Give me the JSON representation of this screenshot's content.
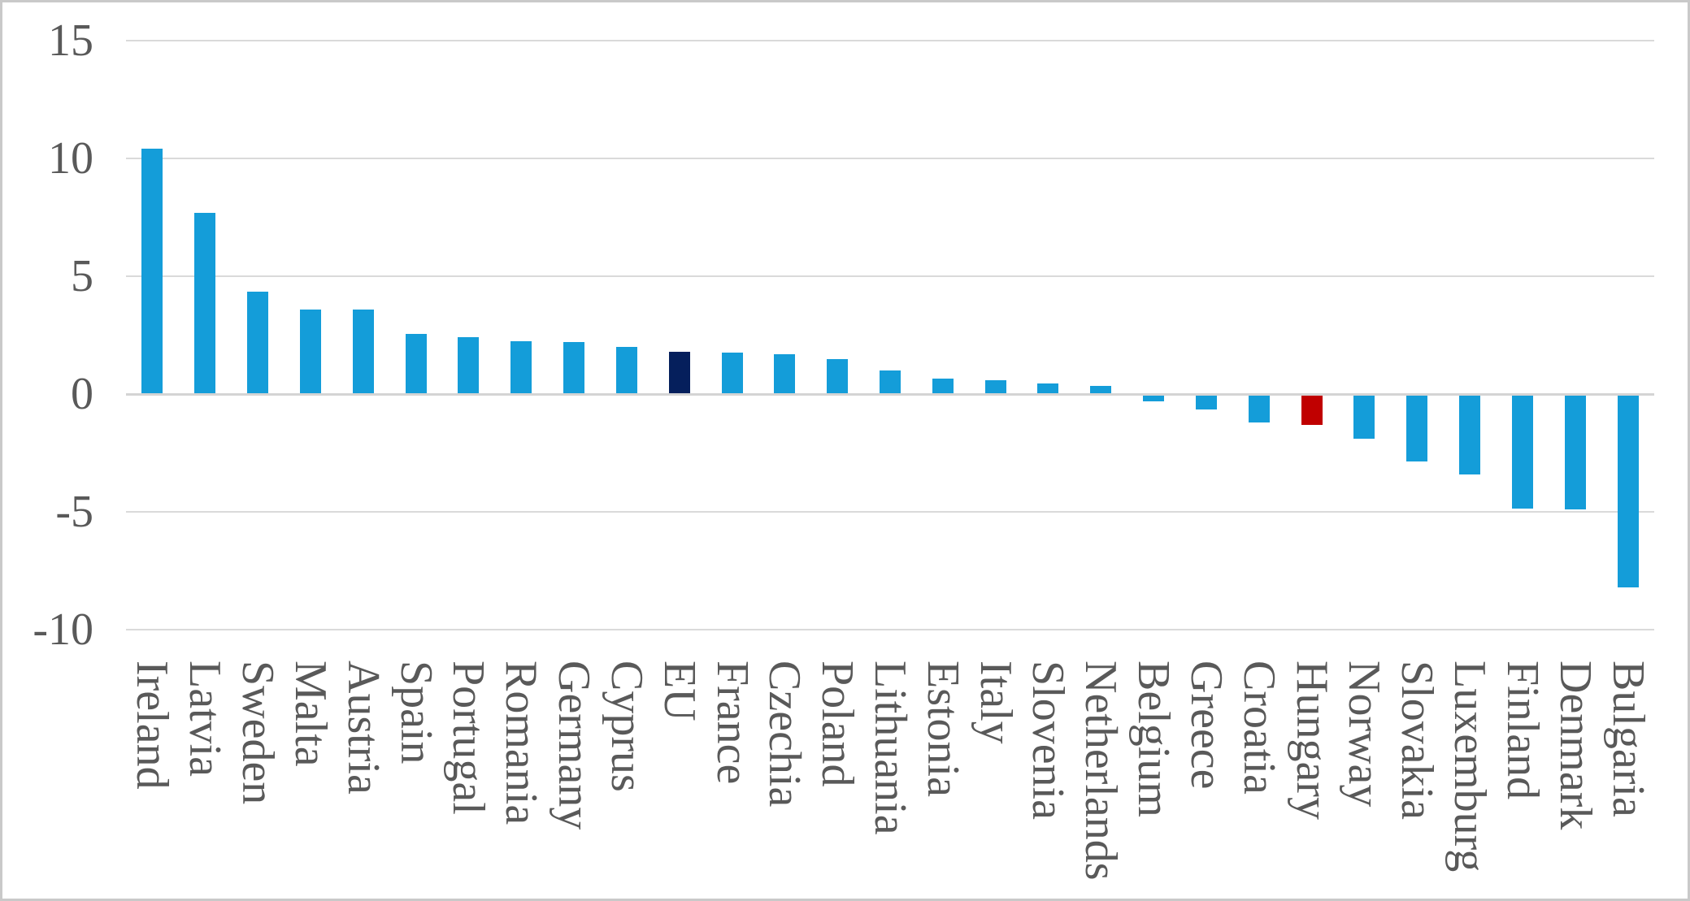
{
  "figure": {
    "background": "#ffffff",
    "border_color": "#c9c9c9"
  },
  "chart_data": {
    "type": "bar",
    "title": "",
    "xlabel": "",
    "ylabel": "",
    "categories": [
      "Ireland",
      "Latvia",
      "Sweden",
      "Malta",
      "Austria",
      "Spain",
      "Portugal",
      "Romania",
      "Germany",
      "Cyprus",
      "EU",
      "France",
      "Czechia",
      "Poland",
      "Lithuania",
      "Estonia",
      "Italy",
      "Slovenia",
      "Netherlands",
      "Belgium",
      "Greece",
      "Croatia",
      "Hungary",
      "Norway",
      "Slovakia",
      "Luxemburg",
      "Finland",
      "Denmark",
      "Bulgaria"
    ],
    "values": [
      10.4,
      7.7,
      4.35,
      3.6,
      3.6,
      2.55,
      2.4,
      2.25,
      2.2,
      2.0,
      1.8,
      1.75,
      1.7,
      1.5,
      1.0,
      0.65,
      0.6,
      0.45,
      0.35,
      -0.3,
      -0.65,
      -1.2,
      -1.3,
      -1.9,
      -2.85,
      -3.4,
      -4.85,
      -4.9,
      -8.2
    ],
    "default_bar_color": "#149dd9",
    "highlighted_bars": {
      "EU": "#051f5c",
      "Hungary": "#c00000"
    },
    "ylim": [
      -10,
      15
    ],
    "yticks": [
      15,
      10,
      5,
      0,
      -5,
      -10
    ],
    "grid": true,
    "gridline_color": "#dadada",
    "zero_line_color": "#d4d4d4",
    "tick_label_color": "#595959",
    "legend": false
  }
}
